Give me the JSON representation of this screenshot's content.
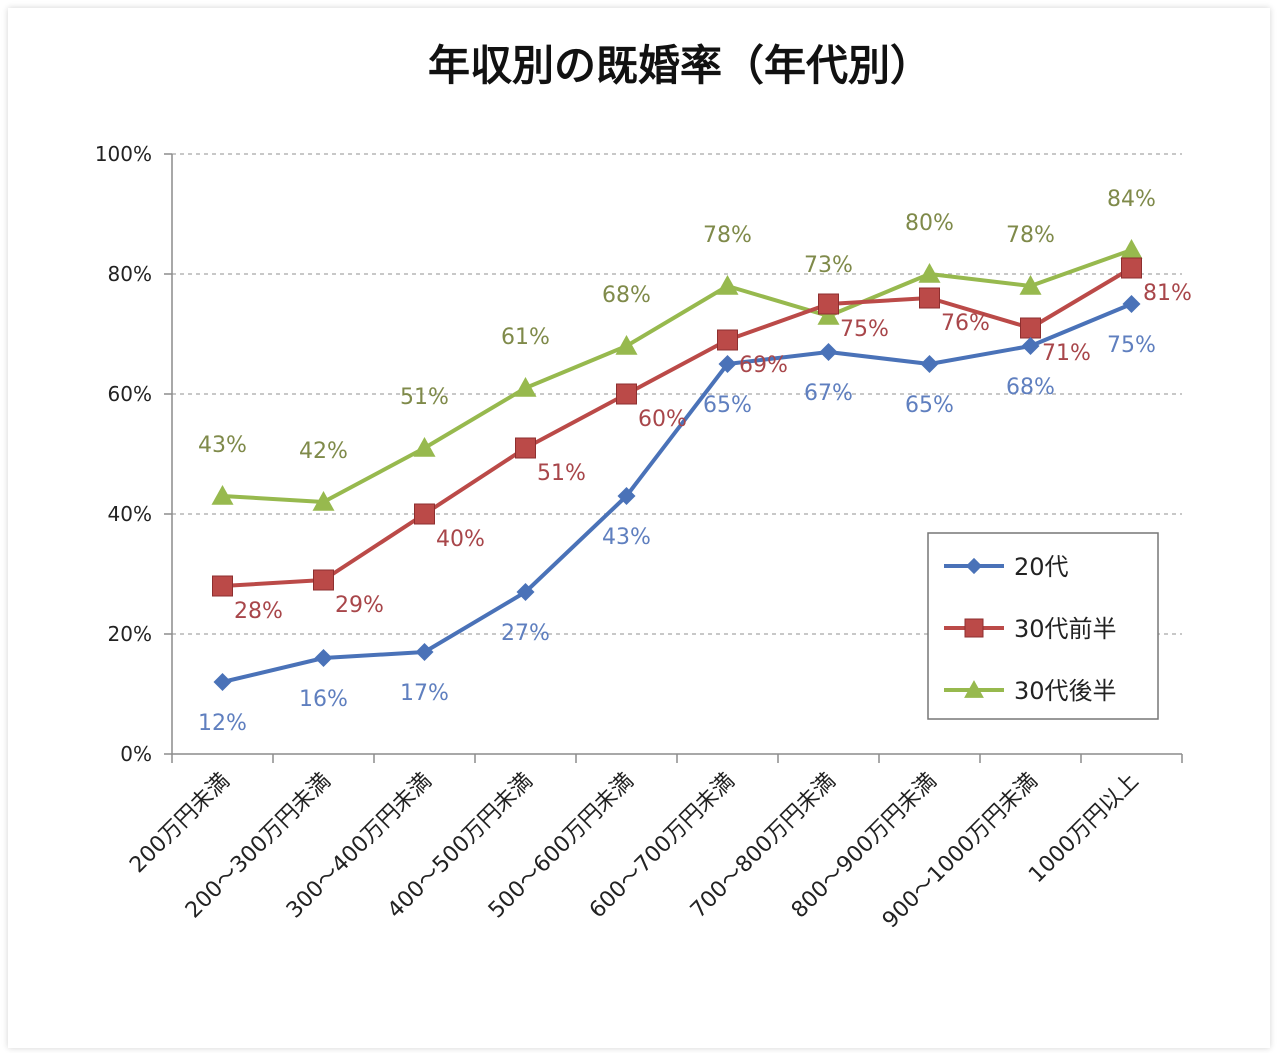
{
  "chart_data": {
    "type": "line",
    "title": "年収別の既婚率（年代別）",
    "xlabel": "",
    "ylabel": "",
    "categories": [
      "200万円未満",
      "200～300万円未満",
      "300～400万円未満",
      "400～500万円未満",
      "500～600万円未満",
      "600～700万円未満",
      "700～800万円未満",
      "800～900万円未満",
      "900～1000万円未満",
      "1000万円以上"
    ],
    "ylim": [
      0,
      100
    ],
    "yticks": [
      "0%",
      "20%",
      "40%",
      "60%",
      "80%",
      "100%"
    ],
    "grid": "horizontal dashed",
    "legend_position": "bottom-right",
    "series": [
      {
        "name": "20代",
        "values": [
          12,
          16,
          17,
          27,
          43,
          65,
          67,
          65,
          68,
          75
        ],
        "labels": [
          "12%",
          "16%",
          "17%",
          "27%",
          "43%",
          "65%",
          "67%",
          "65%",
          "68%",
          "75%"
        ],
        "color": "#4a72b8",
        "marker": "diamond"
      },
      {
        "name": "30代前半",
        "values": [
          28,
          29,
          40,
          51,
          60,
          69,
          75,
          76,
          71,
          81
        ],
        "labels": [
          "28%",
          "29%",
          "40%",
          "51%",
          "60%",
          "69%",
          "75%",
          "76%",
          "71%",
          "81%"
        ],
        "color": "#bb4a48",
        "marker": "square"
      },
      {
        "name": "30代後半",
        "values": [
          43,
          42,
          51,
          61,
          68,
          78,
          73,
          80,
          78,
          84
        ],
        "labels": [
          "43%",
          "42%",
          "51%",
          "61%",
          "68%",
          "78%",
          "73%",
          "80%",
          "78%",
          "84%"
        ],
        "color": "#97b94e",
        "marker": "triangle"
      }
    ],
    "label_colors": {
      "20代": "#5f7fbf",
      "30代前半": "#a8464a",
      "30代後半": "#7f8a4a"
    }
  }
}
